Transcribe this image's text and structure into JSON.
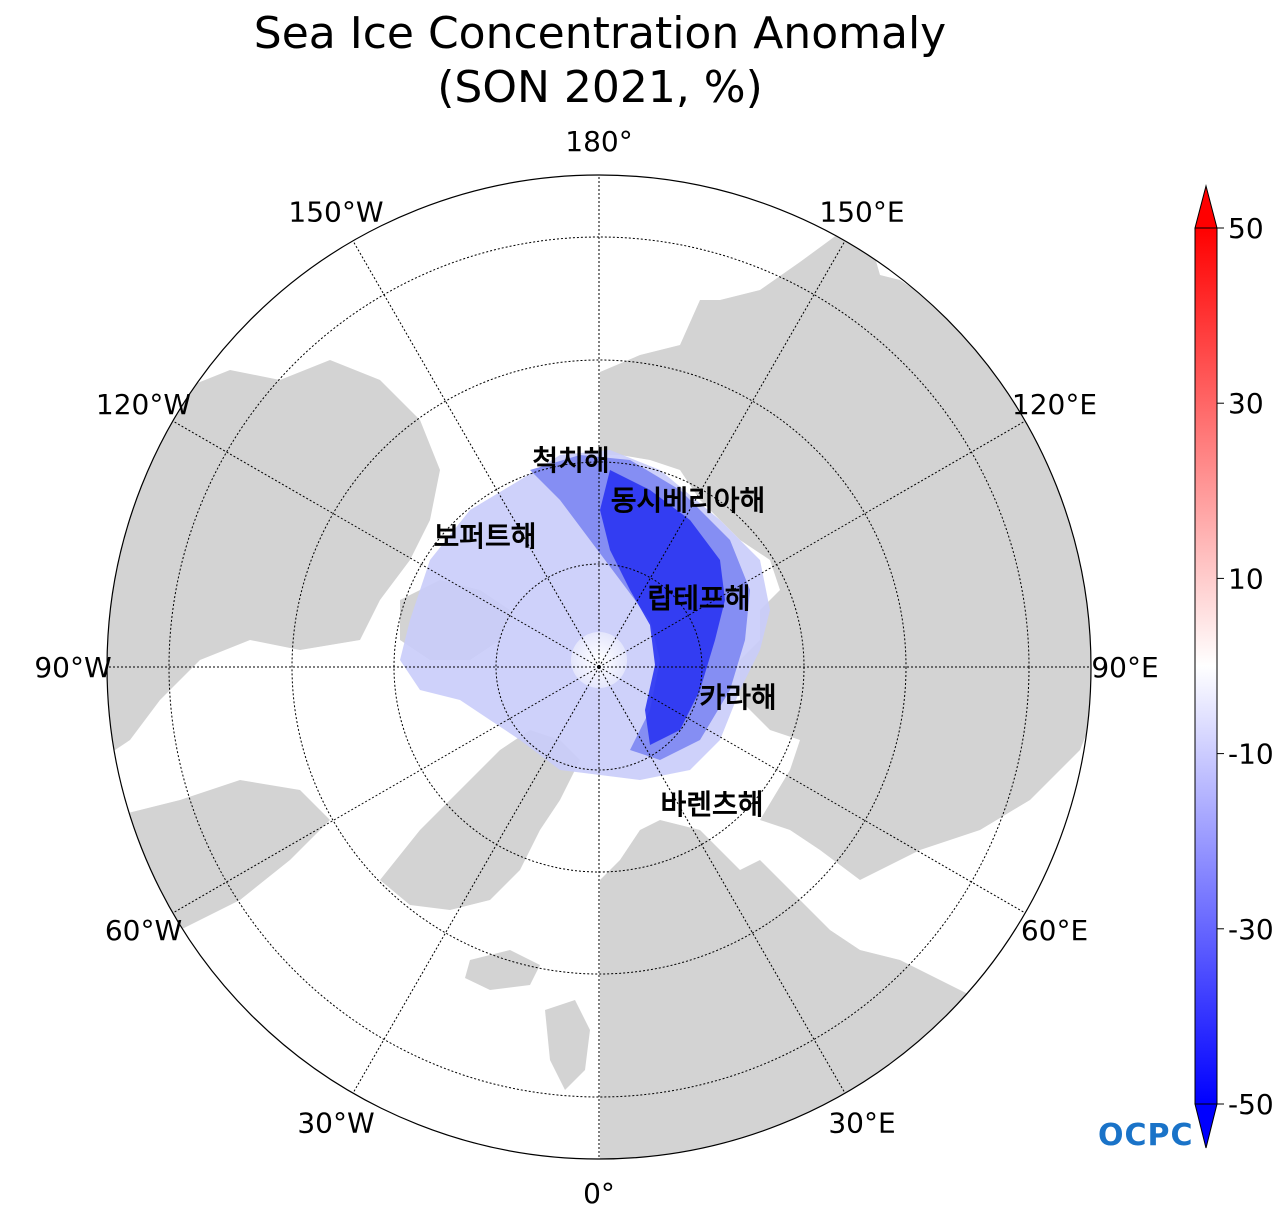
{
  "title_line1": "Sea Ice Concentration Anomaly",
  "title_line2": "(SON 2021, %)",
  "longitude_labels": [
    {
      "text": "180°",
      "lon": 180
    },
    {
      "text": "150°E",
      "lon": 150
    },
    {
      "text": "120°E",
      "lon": 120
    },
    {
      "text": "90°E",
      "lon": 90
    },
    {
      "text": "60°E",
      "lon": 60
    },
    {
      "text": "30°E",
      "lon": 30
    },
    {
      "text": "0°",
      "lon": 0
    },
    {
      "text": "30°W",
      "lon": -30
    },
    {
      "text": "60°W",
      "lon": -60
    },
    {
      "text": "90°W",
      "lon": -90
    },
    {
      "text": "120°W",
      "lon": -120
    },
    {
      "text": "150°W",
      "lon": -150
    }
  ],
  "regions": [
    {
      "name": "chukchi-sea",
      "text": "척치해"
    },
    {
      "name": "east-siberian-sea",
      "text": "동시베리아해"
    },
    {
      "name": "beaufort-sea",
      "text": "보퍼트해"
    },
    {
      "name": "laptev-sea",
      "text": "랍테프해"
    },
    {
      "name": "kara-sea",
      "text": "카라해"
    },
    {
      "name": "barents-sea",
      "text": "바렌츠해"
    }
  ],
  "colorbar": {
    "ticks": [
      "50",
      "30",
      "10",
      "-10",
      "-30",
      "-50"
    ],
    "min": -50,
    "max": 50,
    "low_color": "#0000ff",
    "mid_color": "#ffffff",
    "high_color": "#ff0000"
  },
  "logo_text": "OCPC",
  "colors": {
    "land": "#d3d3d3",
    "ocean": "#ffffff",
    "strong_negative": "#1e2af5",
    "moderate_negative": "#6a74f0",
    "weak_negative": "#c4c8f8"
  }
}
